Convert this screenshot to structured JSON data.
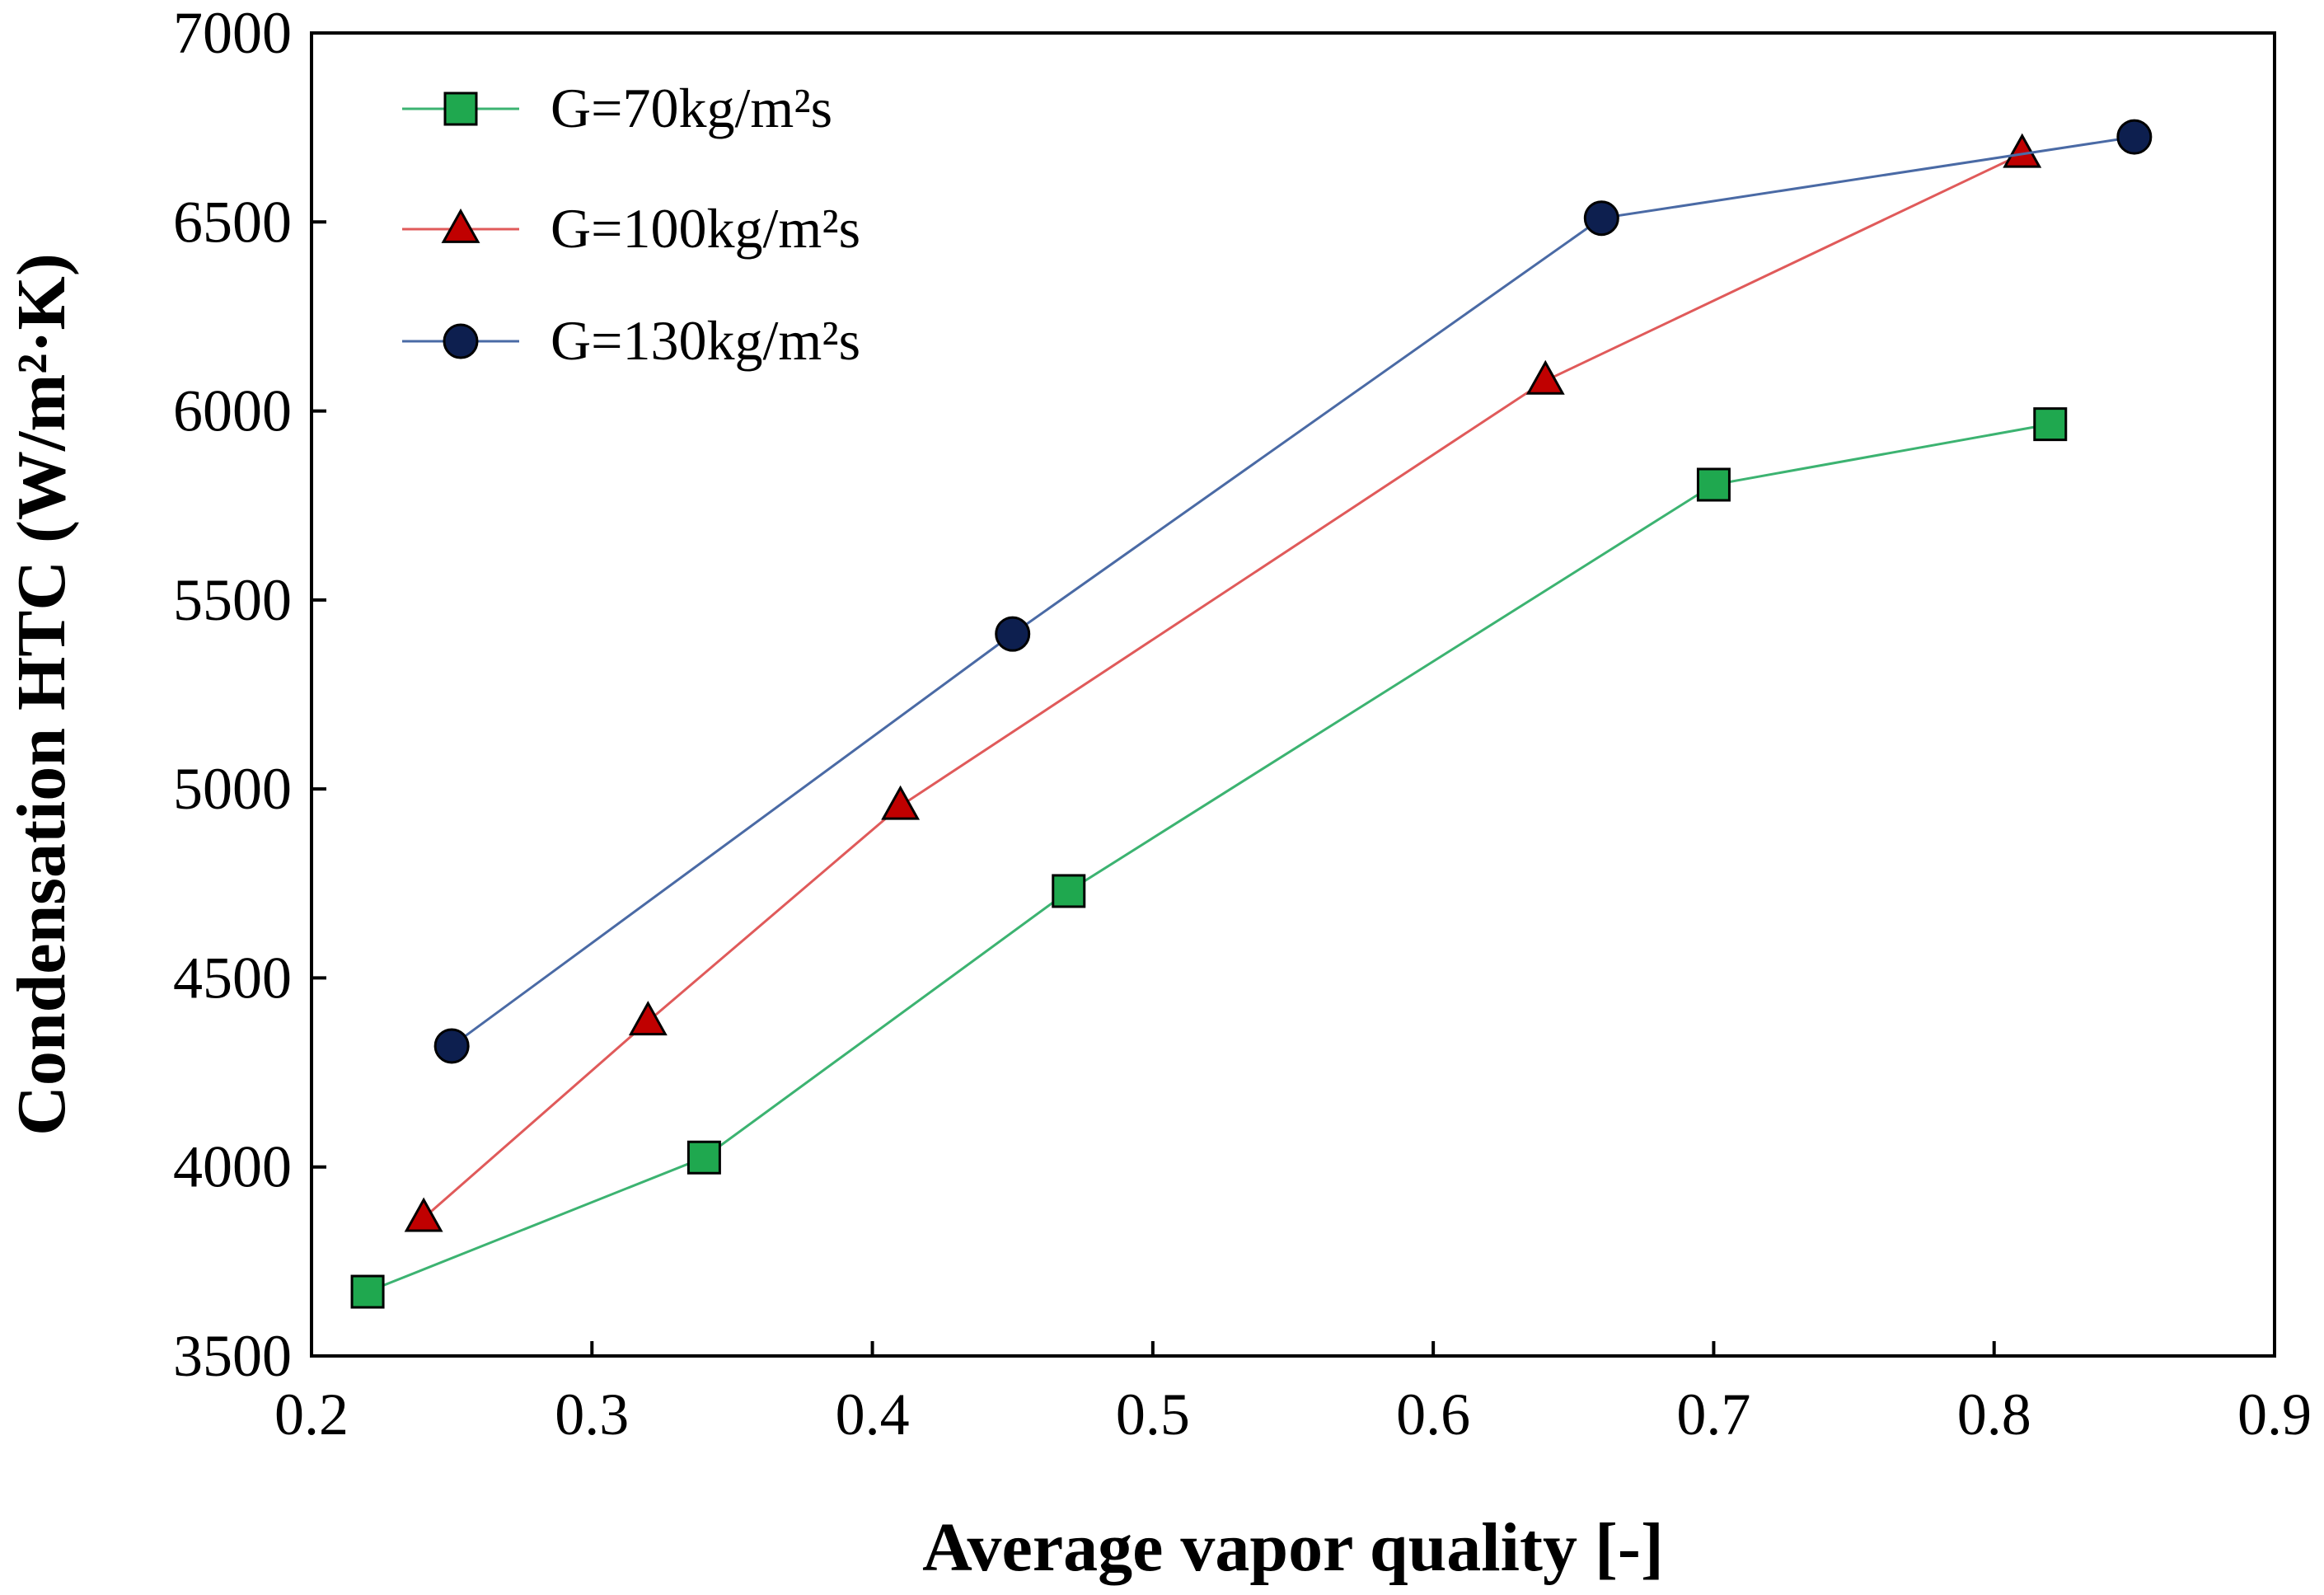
{
  "chart_data": {
    "type": "line",
    "title": "",
    "xlabel": "Average vapor quality [-]",
    "ylabel": "Condensation HTC (W/m²·K)",
    "xlim": [
      0.2,
      0.9
    ],
    "ylim": [
      3500,
      7000
    ],
    "xticks": [
      0.2,
      0.3,
      0.4,
      0.5,
      0.6,
      0.7,
      0.8,
      0.9
    ],
    "xtick_labels": [
      "0.2",
      "0.3",
      "0.4",
      "0.5",
      "0.6",
      "0.7",
      "0.8",
      "0.9"
    ],
    "yticks": [
      3500,
      4000,
      4500,
      5000,
      5500,
      6000,
      6500,
      7000
    ],
    "ytick_labels": [
      "3500",
      "4000",
      "4500",
      "5000",
      "5500",
      "6000",
      "6500",
      "7000"
    ],
    "grid": false,
    "legend_position": "top-left",
    "series": [
      {
        "name": "G=70kg/m²s",
        "marker": "square",
        "line_color": "#3cb371",
        "marker_color": "#1fa84f",
        "x": [
          0.22,
          0.34,
          0.47,
          0.7,
          0.82
        ],
        "y": [
          3670,
          4025,
          4730,
          5805,
          5965
        ]
      },
      {
        "name": "G=100kg/m²s",
        "marker": "triangle",
        "line_color": "#e05a5a",
        "marker_color": "#c00000",
        "x": [
          0.24,
          0.32,
          0.41,
          0.64,
          0.81
        ],
        "y": [
          3865,
          4385,
          4955,
          6080,
          6680
        ]
      },
      {
        "name": "G=130kg/m²s",
        "marker": "circle",
        "line_color": "#4a6aa5",
        "marker_color": "#0d1f4f",
        "x": [
          0.25,
          0.45,
          0.66,
          0.85
        ],
        "y": [
          4320,
          5410,
          6510,
          6725
        ]
      }
    ]
  }
}
